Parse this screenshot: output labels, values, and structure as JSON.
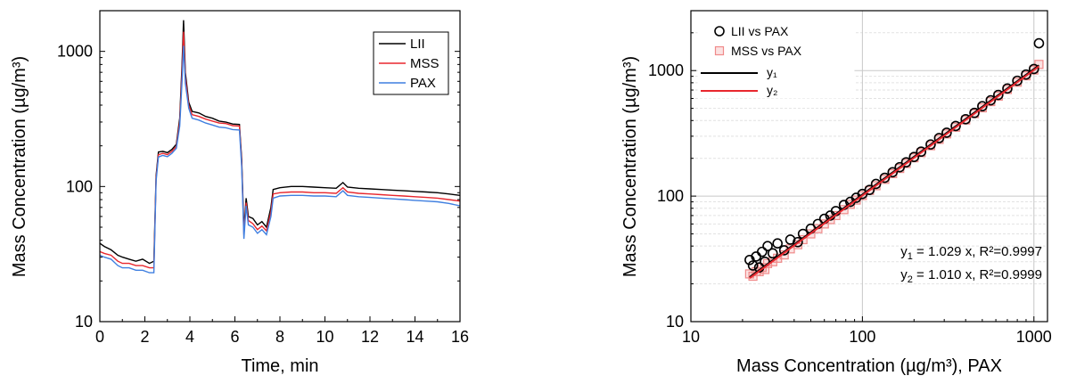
{
  "chart_data": [
    {
      "type": "line",
      "xlabel": "Time, min",
      "ylabel": "Mass Concentration (µg/m³)",
      "x_scale": "linear",
      "y_scale": "log",
      "xlim": [
        0,
        16
      ],
      "ylim": [
        10,
        2000
      ],
      "x_ticks": [
        0,
        2,
        4,
        6,
        8,
        10,
        12,
        14,
        16
      ],
      "x_tick_labels": [
        "0",
        "2",
        "4",
        "6",
        "8",
        "10",
        "12",
        "14",
        "16"
      ],
      "y_ticks": [
        10,
        100,
        1000
      ],
      "y_tick_labels": [
        "10",
        "100",
        "1000"
      ],
      "legend_position": "top-right",
      "grid": false,
      "x": [
        0.0,
        0.2,
        0.5,
        0.8,
        1.0,
        1.3,
        1.6,
        1.9,
        2.2,
        2.4,
        2.5,
        2.6,
        2.8,
        3.0,
        3.2,
        3.4,
        3.55,
        3.65,
        3.72,
        3.8,
        3.95,
        4.1,
        4.4,
        4.7,
        5.0,
        5.3,
        5.6,
        5.9,
        6.2,
        6.3,
        6.4,
        6.5,
        6.6,
        6.8,
        7.0,
        7.2,
        7.4,
        7.6,
        7.7,
        8.0,
        8.5,
        9.0,
        9.5,
        10.0,
        10.5,
        10.8,
        11.0,
        11.5,
        12.0,
        12.5,
        13.0,
        13.5,
        14.0,
        14.5,
        15.0,
        15.5,
        16.0
      ],
      "series": [
        {
          "name": "LII",
          "color": "#000000",
          "values": [
            38,
            36,
            34,
            31,
            30,
            29,
            28,
            29,
            27,
            28,
            120,
            180,
            182,
            178,
            188,
            205,
            320,
            800,
            1700,
            700,
            420,
            360,
            350,
            330,
            320,
            305,
            300,
            290,
            288,
            160,
            48,
            82,
            60,
            58,
            52,
            55,
            50,
            70,
            95,
            98,
            100,
            100,
            99,
            98,
            97,
            107,
            99,
            97,
            96,
            95,
            94,
            93,
            92,
            91,
            90,
            88,
            86
          ]
        },
        {
          "name": "MSS",
          "color": "#e8272e",
          "values": [
            33,
            32,
            31,
            28,
            27,
            27,
            26,
            26,
            25,
            25,
            115,
            172,
            176,
            172,
            182,
            198,
            300,
            700,
            1400,
            640,
            400,
            340,
            330,
            315,
            305,
            295,
            292,
            282,
            280,
            150,
            44,
            76,
            56,
            53,
            48,
            51,
            47,
            65,
            88,
            90,
            91,
            91,
            90,
            90,
            89,
            98,
            91,
            89,
            88,
            87,
            86,
            85,
            84,
            83,
            82,
            80,
            78
          ]
        },
        {
          "name": "PAX",
          "color": "#3f7fe0",
          "values": [
            31,
            30,
            29,
            26,
            25,
            25,
            24,
            24,
            23,
            23,
            110,
            165,
            170,
            166,
            176,
            192,
            280,
            600,
            1100,
            580,
            380,
            320,
            310,
            295,
            285,
            275,
            272,
            264,
            262,
            140,
            41,
            72,
            52,
            50,
            45,
            48,
            44,
            60,
            82,
            85,
            86,
            86,
            85,
            85,
            84,
            93,
            86,
            84,
            83,
            82,
            81,
            80,
            79,
            78,
            77,
            75,
            72
          ]
        }
      ]
    },
    {
      "type": "scatter",
      "xlabel": "Mass Concentration (µg/m³), PAX",
      "ylabel": "Mass Concentration (µg/m³)",
      "x_scale": "log",
      "y_scale": "log",
      "xlim": [
        10,
        1200
      ],
      "ylim": [
        10,
        3000
      ],
      "x_ticks": [
        10,
        100,
        1000
      ],
      "x_tick_labels": [
        "10",
        "100",
        "1000"
      ],
      "y_ticks": [
        10,
        100,
        1000
      ],
      "y_tick_labels": [
        "10",
        "100",
        "1000"
      ],
      "legend_position": "top-left",
      "grid": true,
      "series": [
        {
          "name": "LII vs PAX",
          "marker": "circle",
          "color": "#000000",
          "x": [
            22,
            23,
            24,
            25,
            26,
            27,
            28,
            30,
            32,
            35,
            38,
            42,
            45,
            50,
            55,
            60,
            65,
            70,
            78,
            85,
            92,
            100,
            110,
            120,
            135,
            150,
            165,
            180,
            200,
            220,
            250,
            280,
            310,
            350,
            400,
            450,
            500,
            560,
            620,
            700,
            800,
            900,
            1000,
            1070
          ],
          "y": [
            31,
            28,
            33,
            27,
            36,
            30,
            40,
            35,
            42,
            37,
            45,
            43,
            50,
            55,
            60,
            66,
            70,
            76,
            85,
            90,
            97,
            104,
            112,
            125,
            140,
            155,
            170,
            186,
            205,
            226,
            258,
            290,
            320,
            362,
            410,
            460,
            520,
            580,
            640,
            720,
            830,
            930,
            1030,
            1650
          ]
        },
        {
          "name": "MSS vs PAX",
          "marker": "square",
          "color": "#f08a8a",
          "x": [
            22,
            23,
            24,
            25,
            26,
            27,
            28,
            30,
            32,
            35,
            38,
            42,
            45,
            50,
            55,
            60,
            65,
            70,
            78,
            85,
            92,
            100,
            110,
            120,
            135,
            150,
            165,
            180,
            200,
            220,
            250,
            280,
            310,
            350,
            400,
            450,
            500,
            560,
            620,
            700,
            800,
            900,
            1000,
            1070
          ],
          "y": [
            24,
            23,
            25,
            25,
            27,
            26,
            29,
            30,
            32,
            34,
            38,
            41,
            45,
            50,
            55,
            60,
            65,
            70,
            78,
            86,
            93,
            101,
            111,
            121,
            136,
            151,
            166,
            182,
            202,
            222,
            252,
            283,
            313,
            354,
            404,
            454,
            505,
            566,
            626,
            707,
            808,
            909,
            1010,
            1120
          ]
        },
        {
          "name": "y₁",
          "type": "line",
          "color": "#000000",
          "slope": 1.029,
          "x": [
            22,
            1070
          ]
        },
        {
          "name": "y₂",
          "type": "line",
          "color": "#e8272e",
          "slope": 1.01,
          "x": [
            22,
            1070
          ]
        }
      ],
      "annotations": [
        {
          "sym": "y",
          "sub": "1",
          "text": " = 1.029 x, R²=0.9997"
        },
        {
          "sym": "y",
          "sub": "2",
          "text": " = 1.010 x, R²=0.9999"
        }
      ]
    }
  ]
}
